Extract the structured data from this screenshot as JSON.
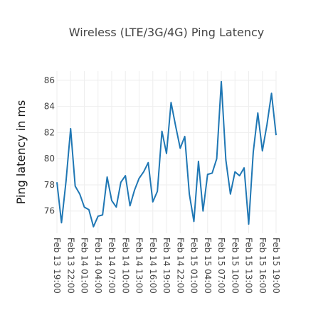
{
  "chart_data": {
    "type": "line",
    "title": "Wireless (LTE/3G/4G) Ping Latency",
    "xlabel": "",
    "ylabel": "Ping latency in ms",
    "ylim": [
      74.3,
      86.7
    ],
    "y_ticks": [
      76,
      78,
      80,
      82,
      84,
      86
    ],
    "x_tick_labels": [
      "Feb 13 19:00",
      "Feb 13 22:00",
      "Feb 14 01:00",
      "Feb 14 04:00",
      "Feb 14 07:00",
      "Feb 14 10:00",
      "Feb 14 13:00",
      "Feb 14 16:00",
      "Feb 14 19:00",
      "Feb 14 22:00",
      "Feb 15 01:00",
      "Feb 15 04:00",
      "Feb 15 07:00",
      "Feb 15 10:00",
      "Feb 15 13:00",
      "Feb 15 16:00",
      "Feb 15 19:00"
    ],
    "grid": true,
    "line_color": "#1f77b4",
    "series": [
      {
        "values": [
          78.2,
          75.1,
          78.3,
          82.3,
          77.9,
          77.3,
          76.3,
          76.1,
          74.8,
          75.6,
          75.7,
          78.6,
          76.8,
          76.3,
          78.2,
          78.7,
          76.4,
          77.6,
          78.5,
          79.0,
          79.7,
          76.7,
          77.5,
          82.1,
          80.4,
          84.3,
          82.5,
          80.8,
          81.7,
          77.3,
          75.2,
          79.8,
          76.0,
          78.8,
          78.9,
          80.0,
          85.9,
          79.9,
          77.3,
          79.0,
          78.7,
          79.3,
          75.0,
          80.5,
          83.5,
          80.6,
          82.6,
          85.0,
          81.8
        ]
      }
    ]
  }
}
